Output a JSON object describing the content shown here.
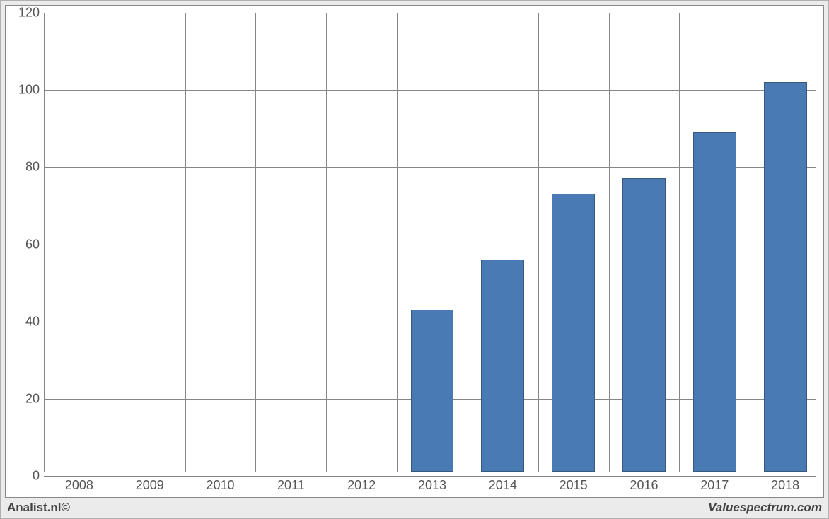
{
  "chart": {
    "type": "bar",
    "categories": [
      "2008",
      "2009",
      "2010",
      "2011",
      "2012",
      "2013",
      "2014",
      "2015",
      "2016",
      "2017",
      "2018"
    ],
    "values": [
      0,
      0,
      0,
      0,
      0,
      42,
      55,
      72,
      76,
      88,
      101
    ],
    "bar_color": "#4a7ab3",
    "bar_border_color": "#38597e",
    "ylim": [
      0,
      120
    ],
    "ytick_step": 20,
    "grid_color": "#868686",
    "background_color": "#ffffff",
    "outer_background": "#ebebeb",
    "label_fontsize": 18,
    "label_color": "#555555",
    "bar_width_ratio": 0.61
  },
  "footer": {
    "left": "Analist.nl©",
    "right": "Valuespectrum.com"
  }
}
